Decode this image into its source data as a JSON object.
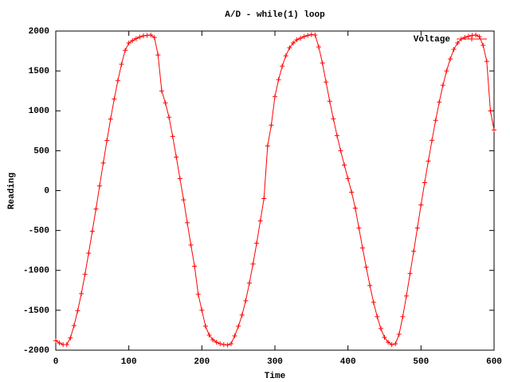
{
  "chart_data": {
    "type": "line",
    "title": "A/D - while(1) loop",
    "x_label": "Time",
    "y_label": "Reading",
    "x": [
      0,
      5,
      10,
      15,
      20,
      25,
      30,
      35,
      40,
      45,
      50,
      55,
      60,
      65,
      70,
      75,
      80,
      85,
      90,
      95,
      100,
      105,
      110,
      115,
      120,
      125,
      130,
      135,
      140,
      145,
      150,
      155,
      160,
      165,
      170,
      175,
      180,
      185,
      190,
      195,
      200,
      205,
      210,
      215,
      220,
      225,
      230,
      235,
      240,
      245,
      250,
      255,
      260,
      265,
      270,
      275,
      280,
      285,
      290,
      295,
      300,
      305,
      310,
      315,
      320,
      325,
      330,
      335,
      340,
      345,
      350,
      355,
      360,
      365,
      370,
      375,
      380,
      385,
      390,
      395,
      400,
      405,
      410,
      415,
      420,
      425,
      430,
      435,
      440,
      445,
      450,
      455,
      460,
      465,
      470,
      475,
      480,
      485,
      490,
      495,
      500,
      505,
      510,
      515,
      520,
      525,
      530,
      535,
      540,
      545,
      550,
      555,
      560,
      565,
      570,
      575,
      580,
      585,
      590,
      595,
      600
    ],
    "series": [
      {
        "name": "Voltage",
        "color": "#ff0000",
        "marker": "+",
        "values": [
          -1880,
          -1910,
          -1930,
          -1930,
          -1847,
          -1692,
          -1505,
          -1292,
          -1050,
          -784,
          -510,
          -231,
          58,
          346,
          627,
          896,
          1148,
          1379,
          1583,
          1758,
          1850,
          1880,
          1905,
          1925,
          1940,
          1945,
          1950,
          1920,
          1700,
          1250,
          1100,
          920,
          680,
          420,
          150,
          -116,
          -403,
          -682,
          -948,
          -1300,
          -1500,
          -1700,
          -1810,
          -1870,
          -1900,
          -1920,
          -1930,
          -1935,
          -1920,
          -1820,
          -1700,
          -1560,
          -1380,
          -1160,
          -920,
          -660,
          -380,
          -100,
          560,
          820,
          1180,
          1390,
          1560,
          1690,
          1790,
          1850,
          1890,
          1910,
          1930,
          1945,
          1955,
          1950,
          1800,
          1600,
          1360,
          1120,
          900,
          690,
          500,
          320,
          150,
          -20,
          -220,
          -470,
          -720,
          -960,
          -1190,
          -1400,
          -1580,
          -1730,
          -1840,
          -1900,
          -1930,
          -1920,
          -1800,
          -1580,
          -1320,
          -1040,
          -760,
          -470,
          -180,
          100,
          370,
          630,
          880,
          1110,
          1320,
          1500,
          1650,
          1770,
          1850,
          1900,
          1920,
          1935,
          1945,
          1950,
          1930,
          1820,
          1620,
          1000,
          760
        ]
      }
    ],
    "xlim": [
      0,
      600
    ],
    "xticks": [
      0,
      100,
      200,
      300,
      400,
      500,
      600
    ],
    "ylim": [
      -2000,
      2000
    ],
    "yticks": [
      -2000,
      -1500,
      -1000,
      -500,
      0,
      500,
      1000,
      1500,
      2000
    ],
    "grid": false,
    "legend": "top-right"
  }
}
